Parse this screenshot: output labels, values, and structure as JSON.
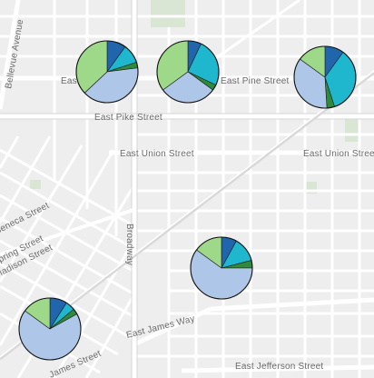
{
  "map": {
    "street_labels": [
      "Bellevue Avenue",
      "East Pike Street",
      "East Pine Street",
      "East Union Street",
      "East Union Street",
      "Broadway",
      "East James Way",
      "East Jefferson Street",
      "Seneca Street",
      "Spring Street",
      "Madison Street",
      "James Street",
      "East"
    ],
    "chart_data": {
      "type": "pie",
      "slice_colors": [
        "#2166ac",
        "#1fb7ce",
        "#2e8b3e",
        "#aec7e8",
        "#9ed98a"
      ],
      "pies": [
        {
          "values": [
            0.1,
            0.1,
            0.03,
            0.4,
            0.37
          ]
        },
        {
          "values": [
            0.07,
            0.25,
            0.03,
            0.3,
            0.35
          ]
        },
        {
          "values": [
            0.1,
            0.35,
            0.04,
            0.36,
            0.15
          ]
        },
        {
          "values": [
            0.08,
            0.13,
            0.04,
            0.6,
            0.15
          ]
        },
        {
          "values": [
            0.09,
            0.05,
            0.03,
            0.68,
            0.15
          ]
        }
      ]
    }
  }
}
